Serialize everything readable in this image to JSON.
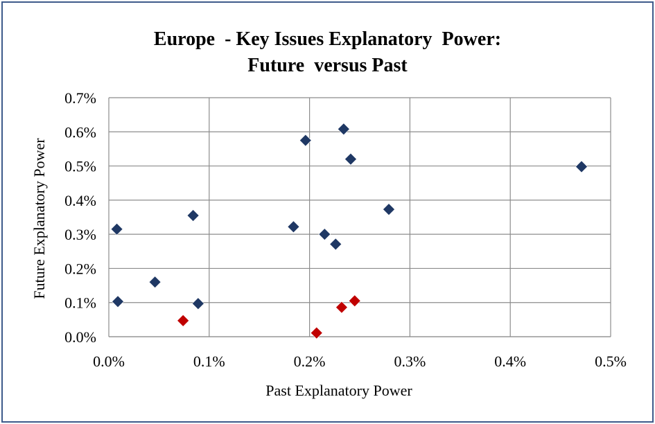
{
  "chart_data": {
    "type": "scatter",
    "title_line1": "Europe  - Key Issues Explanatory  Power:",
    "title_line2": "Future  versus Past",
    "xlabel": "Past Explanatory Power",
    "ylabel": "Future Explanatory Power",
    "xlim": [
      0,
      0.5
    ],
    "ylim": [
      0,
      0.7
    ],
    "x_ticks": [
      0,
      0.1,
      0.2,
      0.3,
      0.4,
      0.5
    ],
    "y_ticks": [
      0,
      0.1,
      0.2,
      0.3,
      0.4,
      0.5,
      0.6,
      0.7
    ],
    "x_tick_labels": [
      "0.0%",
      "0.1%",
      "0.2%",
      "0.3%",
      "0.4%",
      "0.5%"
    ],
    "y_tick_labels": [
      "0.0%",
      "0.1%",
      "0.2%",
      "0.3%",
      "0.4%",
      "0.5%",
      "0.6%",
      "0.7%"
    ],
    "grid": true,
    "series": [
      {
        "color": "#1f3864",
        "points": [
          {
            "x": 0.008,
            "y": 0.315
          },
          {
            "x": 0.009,
            "y": 0.103
          },
          {
            "x": 0.046,
            "y": 0.16
          },
          {
            "x": 0.084,
            "y": 0.355
          },
          {
            "x": 0.089,
            "y": 0.097
          },
          {
            "x": 0.184,
            "y": 0.322
          },
          {
            "x": 0.196,
            "y": 0.575
          },
          {
            "x": 0.215,
            "y": 0.3
          },
          {
            "x": 0.226,
            "y": 0.271
          },
          {
            "x": 0.234,
            "y": 0.608
          },
          {
            "x": 0.241,
            "y": 0.52
          },
          {
            "x": 0.279,
            "y": 0.373
          },
          {
            "x": 0.471,
            "y": 0.498
          }
        ]
      },
      {
        "color": "#c00000",
        "points": [
          {
            "x": 0.074,
            "y": 0.047
          },
          {
            "x": 0.207,
            "y": 0.011
          },
          {
            "x": 0.232,
            "y": 0.086
          },
          {
            "x": 0.245,
            "y": 0.105
          }
        ]
      }
    ]
  }
}
